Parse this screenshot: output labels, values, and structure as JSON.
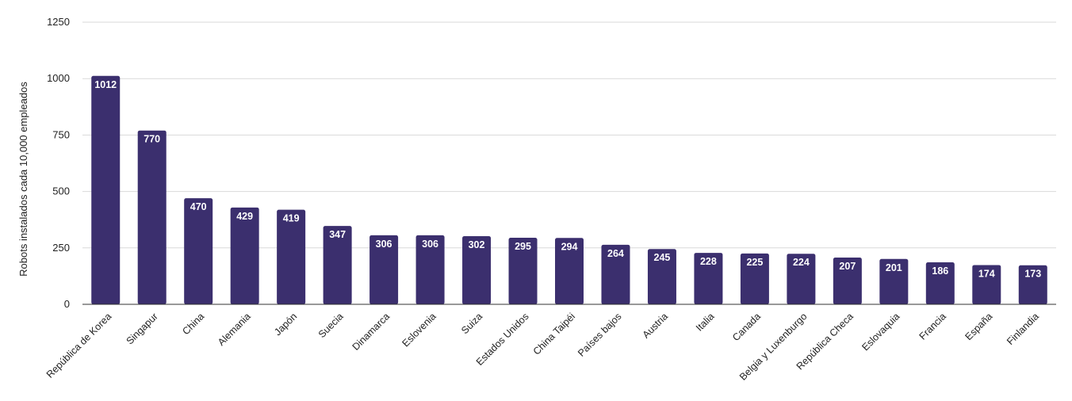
{
  "chart_data": {
    "type": "bar",
    "title": "",
    "xlabel": "",
    "ylabel": "Robots instalados cada 10,000 empleados",
    "ylim": [
      0,
      1250
    ],
    "yticks": [
      0,
      250,
      500,
      750,
      1000,
      1250
    ],
    "grid": true,
    "bar_color": "#3b2f6e",
    "categories": [
      "República de Korea",
      "Singapur",
      "China",
      "Alemania",
      "Japón",
      "Suecia",
      "Dinamarca",
      "Eslovenia",
      "Suiza",
      "Estados Unidos",
      "China Taipéi",
      "Países bajos",
      "Austria",
      "Italia",
      "Canada",
      "Belgia y Luxenburgo",
      "República Checa",
      "Eslovaquia",
      "Francia",
      "España",
      "Finlandia"
    ],
    "values": [
      1012,
      770,
      470,
      429,
      419,
      347,
      306,
      306,
      302,
      295,
      294,
      264,
      245,
      228,
      225,
      224,
      207,
      201,
      186,
      174,
      173
    ]
  }
}
